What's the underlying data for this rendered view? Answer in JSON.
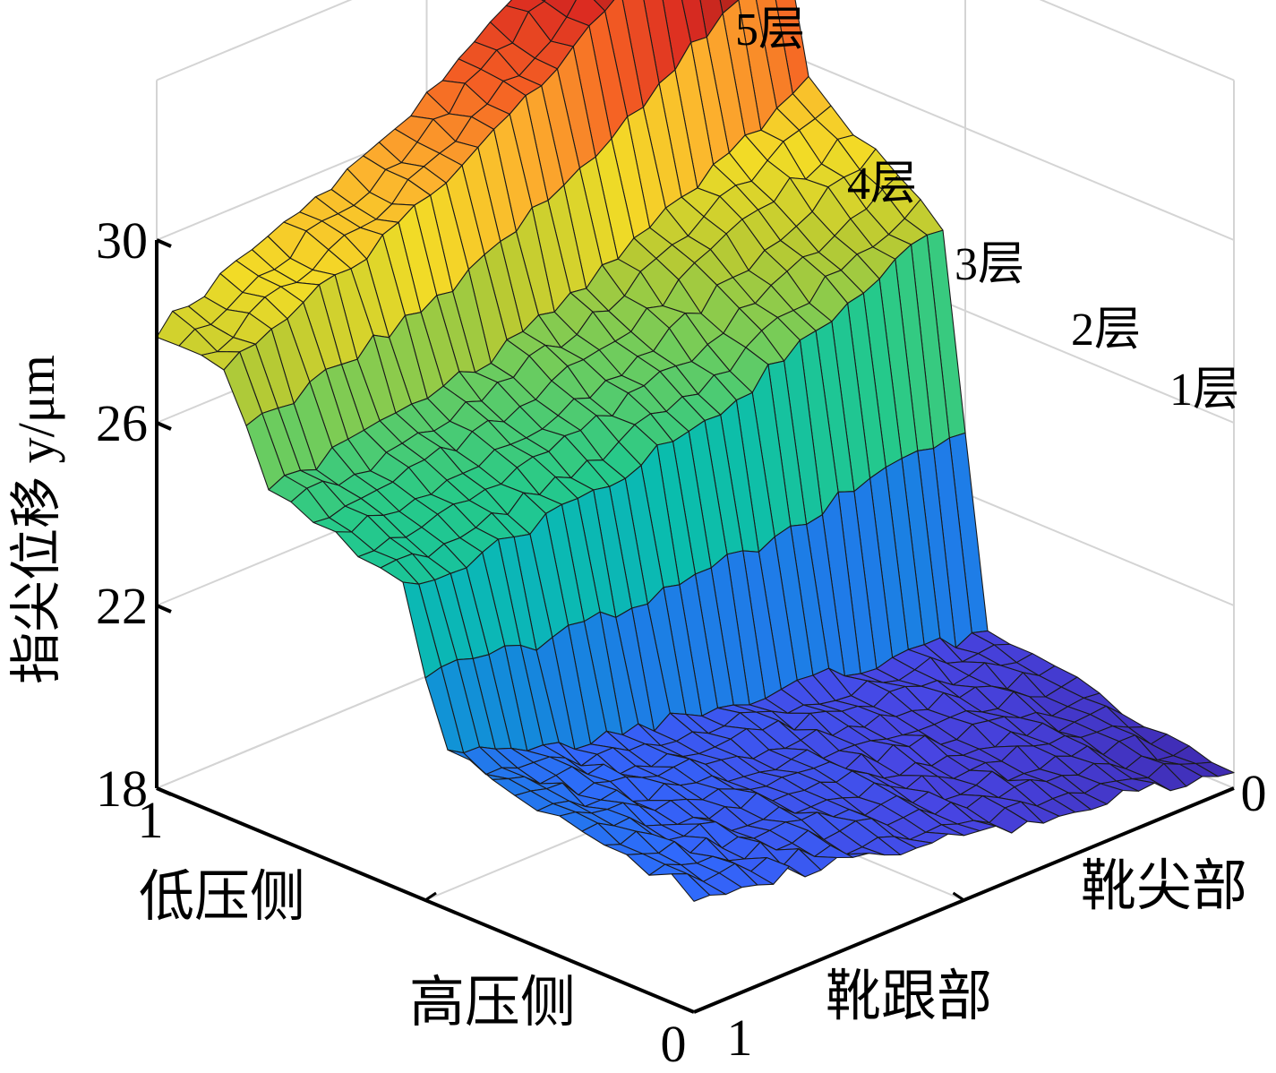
{
  "chart_data": {
    "type": "surface",
    "zlabel": "指尖位移 y/μm",
    "zlim": [
      18,
      30
    ],
    "z_ticks": [
      "18",
      "22",
      "26",
      "30"
    ],
    "x_axis": {
      "end_labels": [
        "1",
        "0"
      ],
      "categories": [
        "低压侧",
        "高压侧"
      ]
    },
    "y_axis": {
      "end_labels": [
        "1",
        "0"
      ],
      "categories": [
        "靴跟部",
        "靴尖部"
      ]
    },
    "layer_labels": [
      "1层",
      "2层",
      "3层",
      "4层",
      "5层"
    ],
    "grid": true,
    "colormap": "parula",
    "surface": {
      "high_side_low_end": [
        20.6,
        20.1,
        19.6,
        19.1,
        18.8,
        18.3
      ],
      "high_side_high_end": [
        26.0,
        27.0,
        28.0,
        29.0,
        31.0,
        34.0
      ],
      "low_side_low_end": [
        22.3,
        21.0,
        20.8,
        20.6,
        20.4,
        20.2
      ],
      "low_side_high_end": [
        28.0,
        29.0,
        30.0,
        31.5,
        33.5,
        35.0
      ]
    }
  }
}
